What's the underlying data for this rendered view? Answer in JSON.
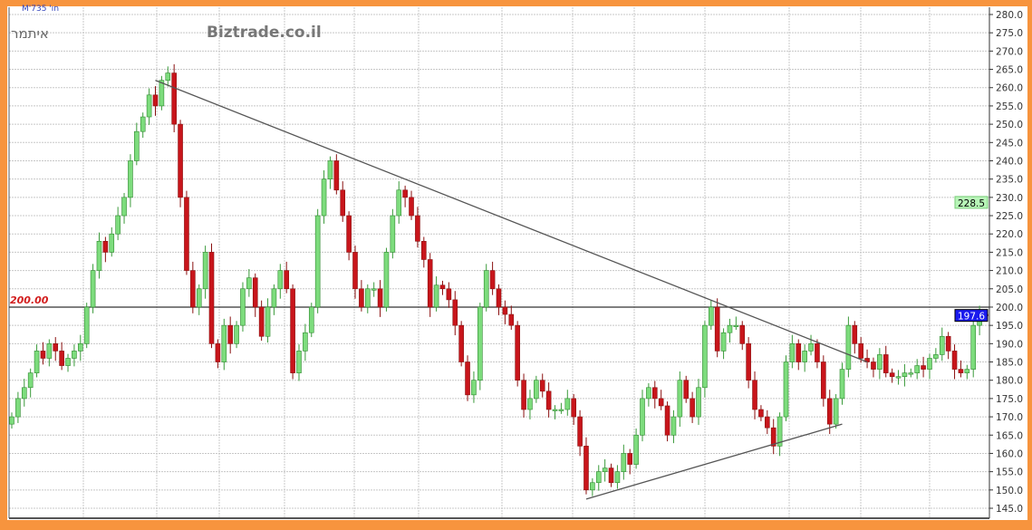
{
  "header": {
    "top_note": "M'735 'חו",
    "instrument": "איתמר",
    "brand": "Biztrade.co.il"
  },
  "colors": {
    "frame": "#f7943e",
    "up": "#7ddc7d",
    "down": "#c8151b",
    "last_price_bg": "#1a1aee",
    "ref_price_bg": "#b8f5b8"
  },
  "chart_data": {
    "type": "candlestick",
    "title": "",
    "xlabel": "",
    "ylabel": "",
    "ylim": [
      145,
      280
    ],
    "yticks": [
      "145.0",
      "150.0",
      "155.0",
      "160.0",
      "165.0",
      "170.0",
      "175.0",
      "180.0",
      "185.0",
      "190.0",
      "195.0",
      "200.0",
      "205.0",
      "210.0",
      "215.0",
      "220.0",
      "225.0",
      "230.0",
      "235.0",
      "240.0",
      "245.0",
      "250.0",
      "255.0",
      "260.0",
      "265.0",
      "270.0",
      "275.0",
      "280.0"
    ],
    "grid": true,
    "y_axis_side": "right",
    "close": [
      170,
      175,
      178,
      182,
      188,
      186,
      190,
      188,
      184,
      186,
      188,
      190,
      200,
      210,
      218,
      215,
      220,
      225,
      230,
      240,
      248,
      252,
      258,
      255,
      262,
      264,
      250,
      230,
      210,
      200,
      205,
      215,
      190,
      185,
      195,
      190,
      195,
      205,
      208,
      200,
      192,
      200,
      205,
      210,
      205,
      182,
      188,
      193,
      200,
      225,
      235,
      240,
      232,
      225,
      215,
      205,
      200,
      205,
      205,
      200,
      215,
      225,
      232,
      230,
      225,
      218,
      213,
      200,
      206,
      205,
      202,
      195,
      185,
      176,
      180,
      200,
      210,
      205,
      200,
      198,
      195,
      180,
      172,
      175,
      180,
      177,
      172,
      172,
      172,
      175,
      170,
      162,
      150,
      152,
      155,
      156,
      152,
      155,
      160,
      157,
      165,
      175,
      178,
      175,
      173,
      165,
      170,
      180,
      175,
      170,
      178,
      195,
      200,
      188,
      193,
      195,
      195,
      190,
      180,
      172,
      170,
      167,
      162,
      170,
      185,
      190,
      185,
      188,
      190,
      185,
      175,
      168,
      175,
      183,
      195,
      190,
      186,
      185,
      183,
      187,
      182,
      181,
      181,
      182,
      182,
      184,
      183,
      186,
      187,
      192,
      188,
      183,
      182,
      183,
      195,
      198,
      197.6
    ],
    "horizontal_line": {
      "value": 200,
      "label": "200.00"
    },
    "trendlines": [
      {
        "from_price": 262,
        "to_price": 185,
        "from_index": 23,
        "to_index": 137
      },
      {
        "from_price": 147.5,
        "to_price": 168,
        "from_index": 92,
        "to_index": 133
      }
    ],
    "price_labels": [
      {
        "value": 228.5,
        "label": "228.5",
        "kind": "reference"
      },
      {
        "value": 197.6,
        "label": "197.6",
        "kind": "last"
      }
    ]
  }
}
